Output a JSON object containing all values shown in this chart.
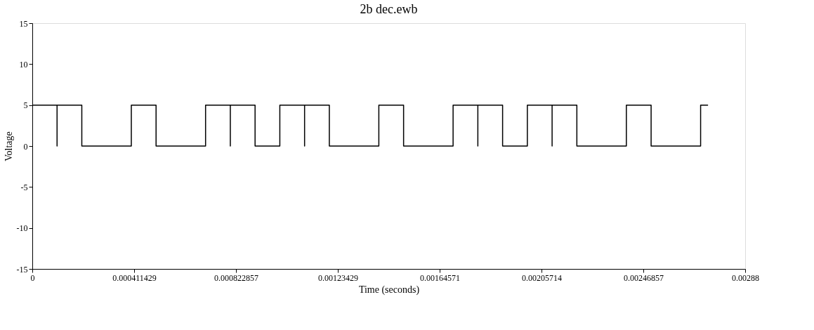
{
  "chart_data": {
    "type": "line",
    "title": "2b dec.ewb",
    "xlabel": "Time (seconds)",
    "ylabel": "Voltage",
    "xlim": [
      0,
      0.00288
    ],
    "xticks": [
      0,
      0.000411429,
      0.000822857,
      0.00123429,
      0.00164571,
      0.00205714,
      0.00246857,
      0.00288
    ],
    "ylim": [
      -15,
      15
    ],
    "yticks": [
      -15,
      -10,
      -5,
      0,
      5,
      10,
      15
    ],
    "grid": false,
    "legend": false,
    "series": [
      {
        "color": "#000000",
        "x": [
          0,
          0.0001,
          0.0001,
          0.0001,
          0.0002,
          0.0002,
          0.0004,
          0.0004,
          0.0005,
          0.0005,
          0.0007,
          0.0007,
          0.0008,
          0.0008,
          0.0008,
          0.0009,
          0.0009,
          0.001,
          0.001,
          0.0011,
          0.0011,
          0.0011,
          0.0012,
          0.0012,
          0.0014,
          0.0014,
          0.0015,
          0.0015,
          0.0017,
          0.0017,
          0.0018,
          0.0018,
          0.0018,
          0.0019,
          0.0019,
          0.002,
          0.002,
          0.0021,
          0.0021,
          0.0021,
          0.0022,
          0.0022,
          0.0024,
          0.0024,
          0.0025,
          0.0025,
          0.0027,
          0.0027,
          0.00273
        ],
        "values": [
          5,
          5,
          0,
          5,
          5,
          0,
          0,
          5,
          5,
          0,
          0,
          5,
          5,
          0,
          5,
          5,
          0,
          0,
          5,
          5,
          0,
          5,
          5,
          0,
          0,
          5,
          5,
          0,
          0,
          5,
          5,
          0,
          5,
          5,
          0,
          0,
          5,
          5,
          0,
          5,
          5,
          0,
          0,
          5,
          5,
          0,
          0,
          5,
          5
        ]
      }
    ]
  }
}
